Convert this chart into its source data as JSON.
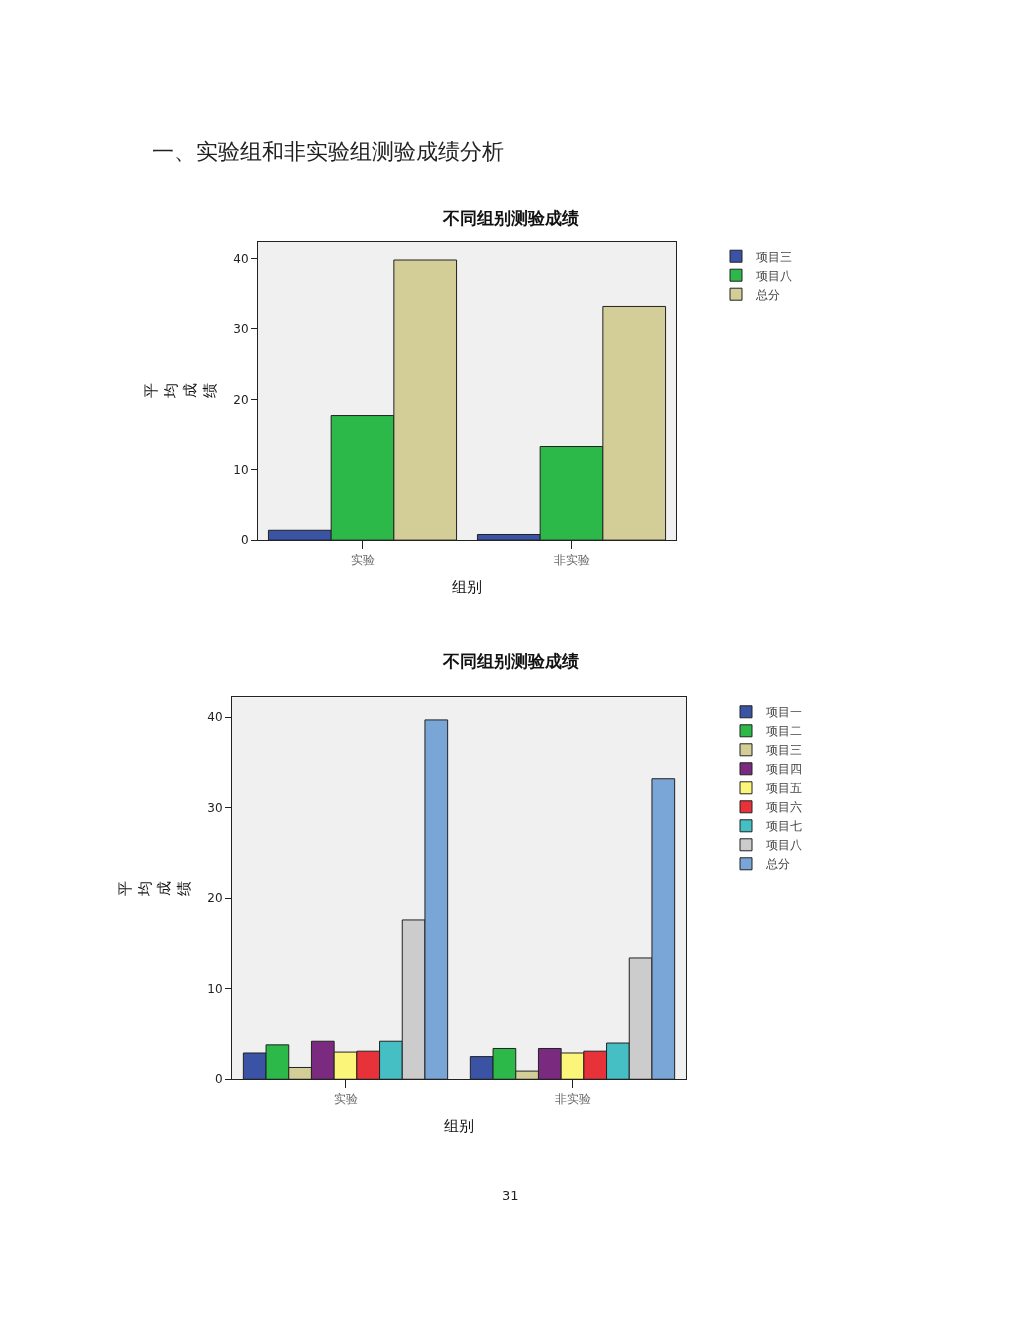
{
  "chart_data": [
    {
      "type": "bar",
      "title": "不同组别测验成绩",
      "xlabel": "组别",
      "ylabel": "平均成绩",
      "annotations": [
        "一、实验组和非实验组测验成绩分析"
      ],
      "categories": [
        "实验",
        "非实验"
      ],
      "series": [
        {
          "name": "项目三",
          "color": "#3a53a4",
          "values": [
            1.4,
            0.8
          ]
        },
        {
          "name": "项目八",
          "color": "#2db84a",
          "values": [
            17.7,
            13.3
          ]
        },
        {
          "name": "总分",
          "color": "#d3ce97",
          "values": [
            39.8,
            33.2
          ]
        }
      ],
      "ylim": [
        0,
        42.4
      ],
      "yticks": [
        0,
        10,
        20,
        30,
        40
      ],
      "legend": "top right",
      "grid": false
    },
    {
      "type": "bar",
      "title": "不同组别测验成绩",
      "xlabel": "组别",
      "ylabel": "平均成绩",
      "annotations": [
        "31"
      ],
      "categories": [
        "实验",
        "非实验"
      ],
      "series": [
        {
          "name": "项目一",
          "color": "#3a53a4",
          "values": [
            2.9,
            2.5
          ]
        },
        {
          "name": "项目二",
          "color": "#2db84a",
          "values": [
            3.8,
            3.4
          ]
        },
        {
          "name": "项目三",
          "color": "#d3ce97",
          "values": [
            1.3,
            0.9
          ]
        },
        {
          "name": "项目四",
          "color": "#7a2a7f",
          "values": [
            4.2,
            3.4
          ]
        },
        {
          "name": "项目五",
          "color": "#fbf57a",
          "values": [
            3.0,
            2.9
          ]
        },
        {
          "name": "项目六",
          "color": "#e8323a",
          "values": [
            3.1,
            3.1
          ]
        },
        {
          "name": "项目七",
          "color": "#45bfc4",
          "values": [
            4.2,
            4.0
          ]
        },
        {
          "name": "项目八",
          "color": "#cccccc",
          "values": [
            17.6,
            13.4
          ]
        },
        {
          "name": "总分",
          "color": "#79a6d6",
          "values": [
            39.7,
            33.2
          ]
        }
      ],
      "ylim": [
        0,
        42.2
      ],
      "yticks": [
        0,
        10,
        20,
        30,
        40
      ],
      "legend": "top right",
      "grid": false
    }
  ]
}
